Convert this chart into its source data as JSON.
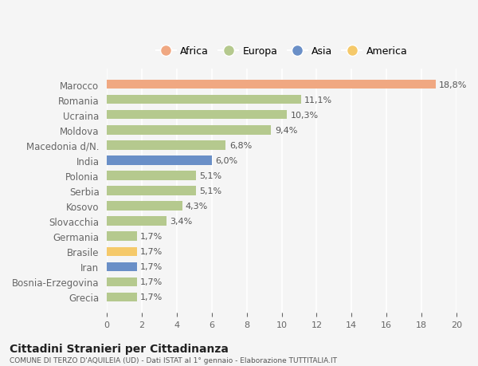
{
  "countries": [
    "Marocco",
    "Romania",
    "Ucraina",
    "Moldova",
    "Macedonia d/N.",
    "India",
    "Polonia",
    "Serbia",
    "Kosovo",
    "Slovacchia",
    "Germania",
    "Brasile",
    "Iran",
    "Bosnia-Erzegovina",
    "Grecia"
  ],
  "values": [
    18.8,
    11.1,
    10.3,
    9.4,
    6.8,
    6.0,
    5.1,
    5.1,
    4.3,
    3.4,
    1.7,
    1.7,
    1.7,
    1.7,
    1.7
  ],
  "labels": [
    "18,8%",
    "11,1%",
    "10,3%",
    "9,4%",
    "6,8%",
    "6,0%",
    "5,1%",
    "5,1%",
    "4,3%",
    "3,4%",
    "1,7%",
    "1,7%",
    "1,7%",
    "1,7%",
    "1,7%"
  ],
  "colors": [
    "#f0a882",
    "#b5c98e",
    "#b5c98e",
    "#b5c98e",
    "#b5c98e",
    "#6a8fc7",
    "#b5c98e",
    "#b5c98e",
    "#b5c98e",
    "#b5c98e",
    "#b5c98e",
    "#f5c96a",
    "#6a8fc7",
    "#b5c98e",
    "#b5c98e"
  ],
  "legend": [
    {
      "label": "Africa",
      "color": "#f0a882"
    },
    {
      "label": "Europa",
      "color": "#b5c98e"
    },
    {
      "label": "Asia",
      "color": "#6a8fc7"
    },
    {
      "label": "America",
      "color": "#f5c96a"
    }
  ],
  "xlim": [
    0,
    20
  ],
  "xticks": [
    0,
    2,
    4,
    6,
    8,
    10,
    12,
    14,
    16,
    18,
    20
  ],
  "title1": "Cittadini Stranieri per Cittadinanza",
  "title2": "COMUNE DI TERZO D'AQUILEIA (UD) - Dati ISTAT al 1° gennaio - Elaborazione TUTTITALIA.IT",
  "bg_color": "#f5f5f5",
  "bar_height": 0.6
}
